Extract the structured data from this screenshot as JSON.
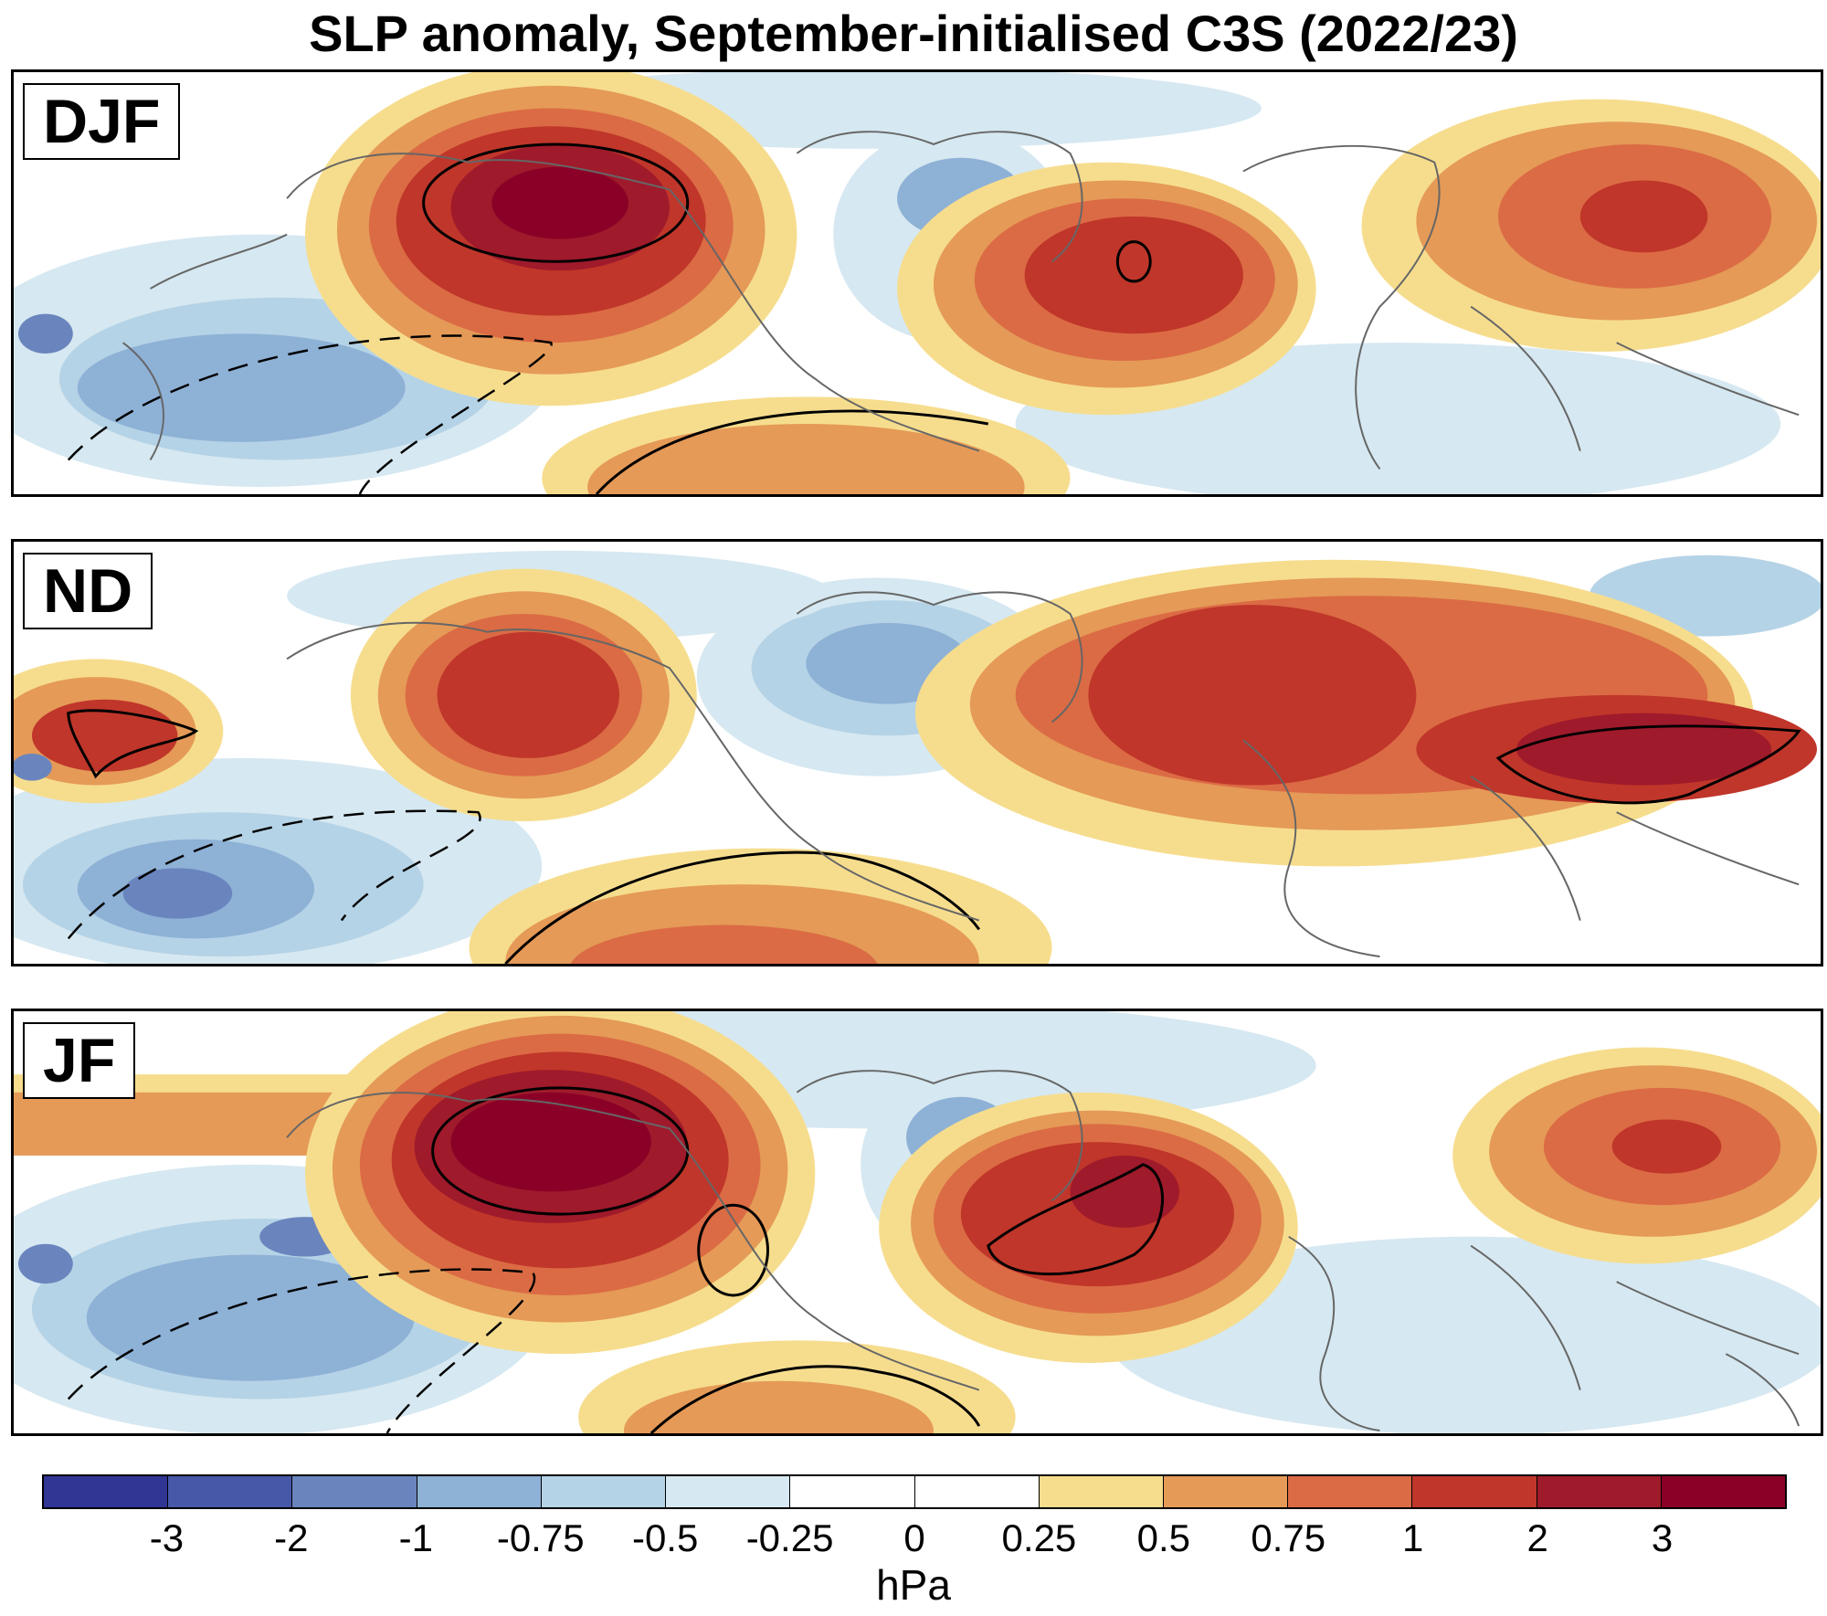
{
  "title": "SLP anomaly, September-initialised C3S (2022/23)",
  "panels": [
    {
      "label": "DJF"
    },
    {
      "label": "ND"
    },
    {
      "label": "JF"
    }
  ],
  "colorbar": {
    "colors": [
      "#313695",
      "#4758a9",
      "#6a85be",
      "#8eb1d6",
      "#b5d3e6",
      "#d6e8f1",
      "#ffffff",
      "#ffffff",
      "#f6dd8e",
      "#e59a57",
      "#db6b44",
      "#c0362a",
      "#9f1a2b",
      "#8b0027"
    ],
    "tick_labels": [
      "-3",
      "-2",
      "-1",
      "-0.75",
      "-0.5",
      "-0.25",
      "0",
      "0.25",
      "0.5",
      "0.75",
      "1",
      "2",
      "3"
    ],
    "unit": "hPa"
  }
}
